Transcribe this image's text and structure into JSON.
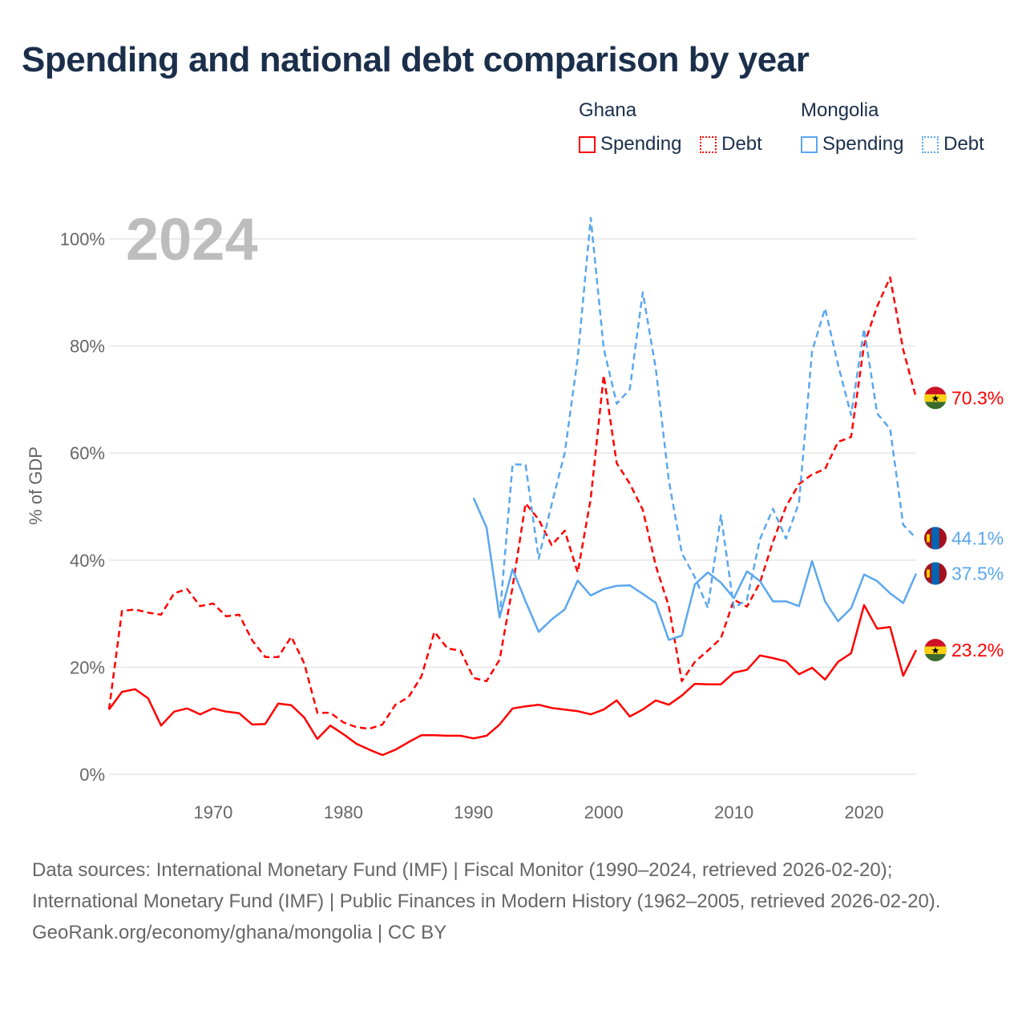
{
  "title": "Spending and national debt comparison by year",
  "legend": {
    "groups": [
      {
        "name": "Ghana",
        "items": [
          {
            "label": "Spending"
          },
          {
            "label": "Debt"
          }
        ]
      },
      {
        "name": "Mongolia",
        "items": [
          {
            "label": "Spending"
          },
          {
            "label": "Debt"
          }
        ]
      }
    ]
  },
  "year_label": "2024",
  "footer": {
    "sources": "Data sources: International Monetary Fund (IMF) | Fiscal Monitor (1990–2024, retrieved 2026-02-20); International Monetary Fund (IMF) | Public Finances in Modern History (1962–2005, retrieved 2026-02-20).",
    "credit": "GeoRank.org/economy/ghana/mongolia | CC BY"
  },
  "chart_data": {
    "type": "line",
    "title": "Spending and national debt comparison by year",
    "xlabel": "",
    "ylabel": "% of GDP",
    "xlim": [
      1962,
      2024
    ],
    "ylim": [
      0,
      105
    ],
    "yticks": [
      0,
      20,
      40,
      60,
      80,
      100
    ],
    "ytick_labels": [
      "0%",
      "20%",
      "40%",
      "60%",
      "80%",
      "100%"
    ],
    "xticks": [
      1970,
      1980,
      1990,
      2000,
      2010,
      2020
    ],
    "xtick_labels": [
      "1970",
      "1980",
      "1990",
      "2000",
      "2010",
      "2020"
    ],
    "grid": true,
    "series": [
      {
        "name": "Ghana Spending",
        "color": "#ff0000",
        "dash": false,
        "start": 1962,
        "end_label": "23.2%",
        "values": [
          12.1,
          15.4,
          15.9,
          14.2,
          9.1,
          11.7,
          12.3,
          11.2,
          12.3,
          11.7,
          11.4,
          9.3,
          9.4,
          13.2,
          12.9,
          10.6,
          6.6,
          9.1,
          7.5,
          5.7,
          4.6,
          3.6,
          4.6,
          6.0,
          7.3,
          7.3,
          7.2,
          7.2,
          6.7,
          7.2,
          9.3,
          12.3,
          12.7,
          13.0,
          12.4,
          12.1,
          11.8,
          11.2,
          12.1,
          13.8,
          10.8,
          12.1,
          13.8,
          13.0,
          14.7,
          16.9,
          16.8,
          16.8,
          19.0,
          19.5,
          22.2,
          21.7,
          21.1,
          18.7,
          19.9,
          17.7,
          21.0,
          22.6,
          31.6,
          27.2,
          27.5,
          18.4,
          23.2
        ]
      },
      {
        "name": "Ghana Debt",
        "color": "#ff0000",
        "dash": true,
        "start": 1962,
        "end_label": "70.3%",
        "values": [
          12.1,
          30.5,
          30.8,
          30.2,
          29.8,
          33.8,
          34.6,
          31.4,
          31.9,
          29.5,
          29.8,
          25.0,
          21.9,
          21.9,
          25.7,
          20.7,
          11.5,
          11.5,
          9.7,
          8.8,
          8.5,
          9.3,
          13.0,
          14.4,
          18.3,
          26.6,
          23.5,
          23.1,
          18.0,
          17.4,
          21.4,
          35.0,
          50.6,
          47.6,
          42.8,
          45.5,
          37.7,
          51.5,
          74.5,
          58.1,
          54.3,
          49.4,
          38.9,
          31.4,
          17.4,
          21.0,
          23.1,
          25.4,
          32.6,
          31.3,
          35.8,
          43.4,
          50.0,
          54.2,
          56.0,
          57.0,
          62.1,
          63.0,
          80.2,
          87.4,
          92.8,
          79.3,
          70.3
        ]
      },
      {
        "name": "Mongolia Spending",
        "color": "#5ba7ee",
        "dash": false,
        "start": 1990,
        "end_label": "37.5%",
        "values": [
          51.6,
          46.1,
          29.3,
          38.3,
          32.3,
          26.6,
          28.9,
          30.8,
          36.2,
          33.4,
          34.6,
          35.2,
          35.3,
          33.7,
          32.0,
          25.1,
          25.9,
          35.5,
          37.7,
          35.8,
          32.9,
          37.9,
          36.1,
          32.3,
          32.3,
          31.4,
          39.8,
          32.3,
          28.6,
          31.0,
          37.3,
          36.1,
          33.8,
          32.0,
          37.5
        ]
      },
      {
        "name": "Mongolia Debt",
        "color": "#5ba7ee",
        "dash": true,
        "start": 1992,
        "end_label": "44.1%",
        "values": [
          29.3,
          57.9,
          57.8,
          40.3,
          50.4,
          60.0,
          77.7,
          103.9,
          79.5,
          69.2,
          71.9,
          90.0,
          75.7,
          54.9,
          41.3,
          36.8,
          31.1,
          48.4,
          31.1,
          32.6,
          43.9,
          49.6,
          44.0,
          50.7,
          79.0,
          87.0,
          76.5,
          67.1,
          83.2,
          67.4,
          64.5,
          46.6,
          44.1
        ]
      }
    ]
  }
}
